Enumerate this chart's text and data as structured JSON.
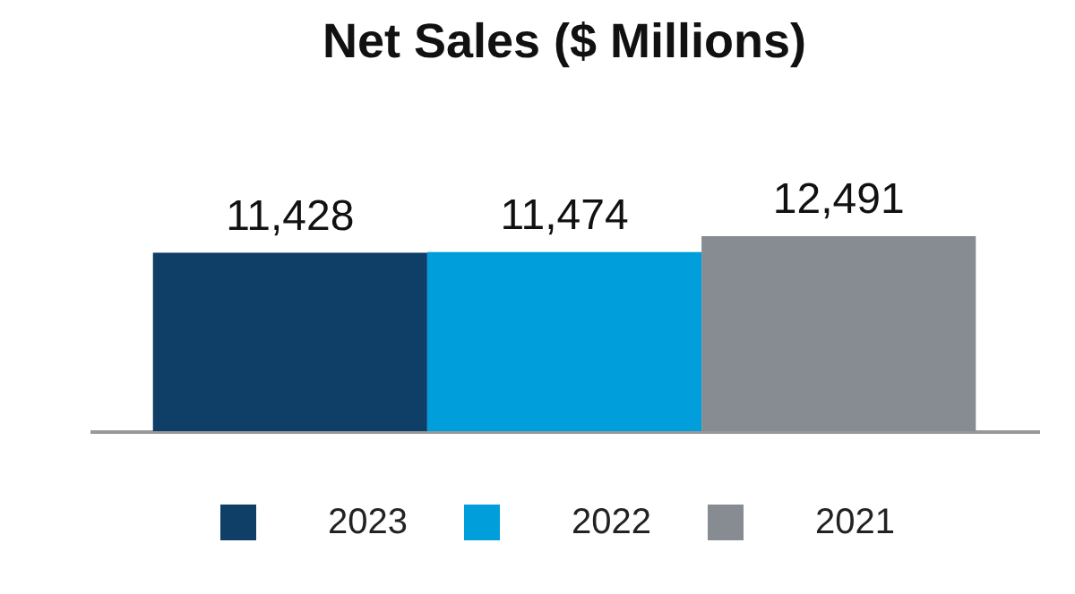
{
  "chart_data": {
    "type": "bar",
    "title": "Net Sales ($ Millions)",
    "categories": [
      null
    ],
    "series": [
      {
        "name": "2023",
        "color": "#0f3f66",
        "values": [
          11428
        ],
        "value_labels": [
          "11,428"
        ]
      },
      {
        "name": "2022",
        "color": "#009fdb",
        "values": [
          11474
        ],
        "value_labels": [
          "11,474"
        ]
      },
      {
        "name": "2021",
        "color": "#878c93",
        "values": [
          12491
        ],
        "value_labels": [
          "12,491"
        ]
      }
    ],
    "legend": "bottom"
  }
}
